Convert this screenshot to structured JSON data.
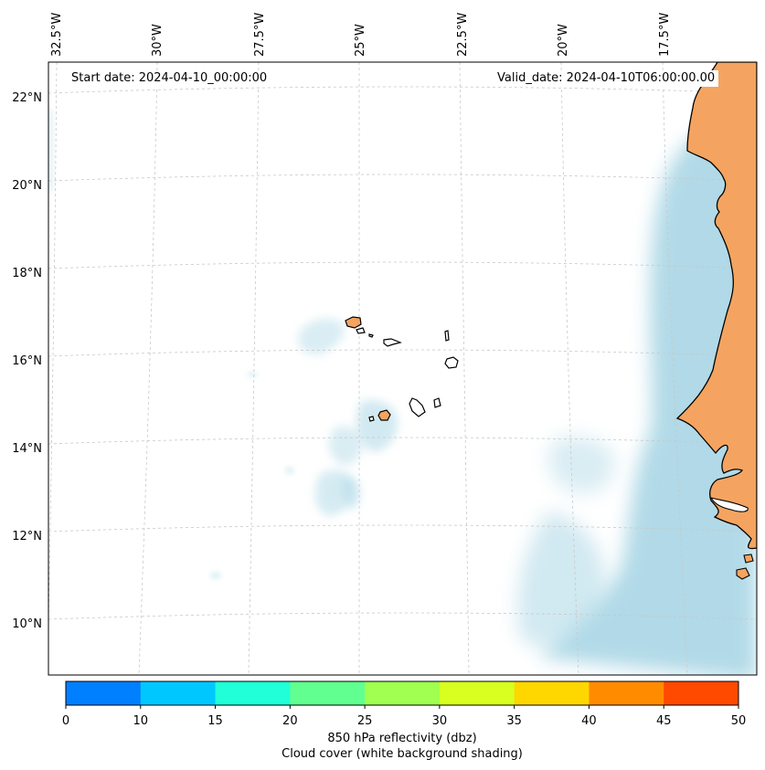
{
  "header": {
    "start_date": "Start date: 2024-04-10_00:00:00",
    "valid_date": "Valid_date: 2024-04-10T06:00:00.00"
  },
  "map": {
    "lon_labels": [
      "32.5°W",
      "30°W",
      "27.5°W",
      "25°W",
      "22.5°W",
      "20°W",
      "17.5°W"
    ],
    "lat_labels": [
      "22°N",
      "20°N",
      "18°N",
      "16°N",
      "14°N",
      "12°N",
      "10°N"
    ],
    "gridlines": "dashed",
    "land_color": "#f4a460",
    "cloud_color": "#add8e6",
    "coastline_color": "#000000",
    "features": [
      "Cape Verde islands",
      "West African coast"
    ]
  },
  "colorbar": {
    "tick_labels": [
      "0",
      "10",
      "15",
      "20",
      "25",
      "30",
      "35",
      "40",
      "45",
      "50"
    ],
    "colors": [
      "#0080ff",
      "#00c8ff",
      "#20ffd8",
      "#60ff90",
      "#a0ff50",
      "#d8ff20",
      "#ffd700",
      "#ff8c00",
      "#ff4a00"
    ],
    "title_line1": "850 hPa reflectivity (dbz)",
    "title_line2": "Cloud cover (white background shading)"
  }
}
